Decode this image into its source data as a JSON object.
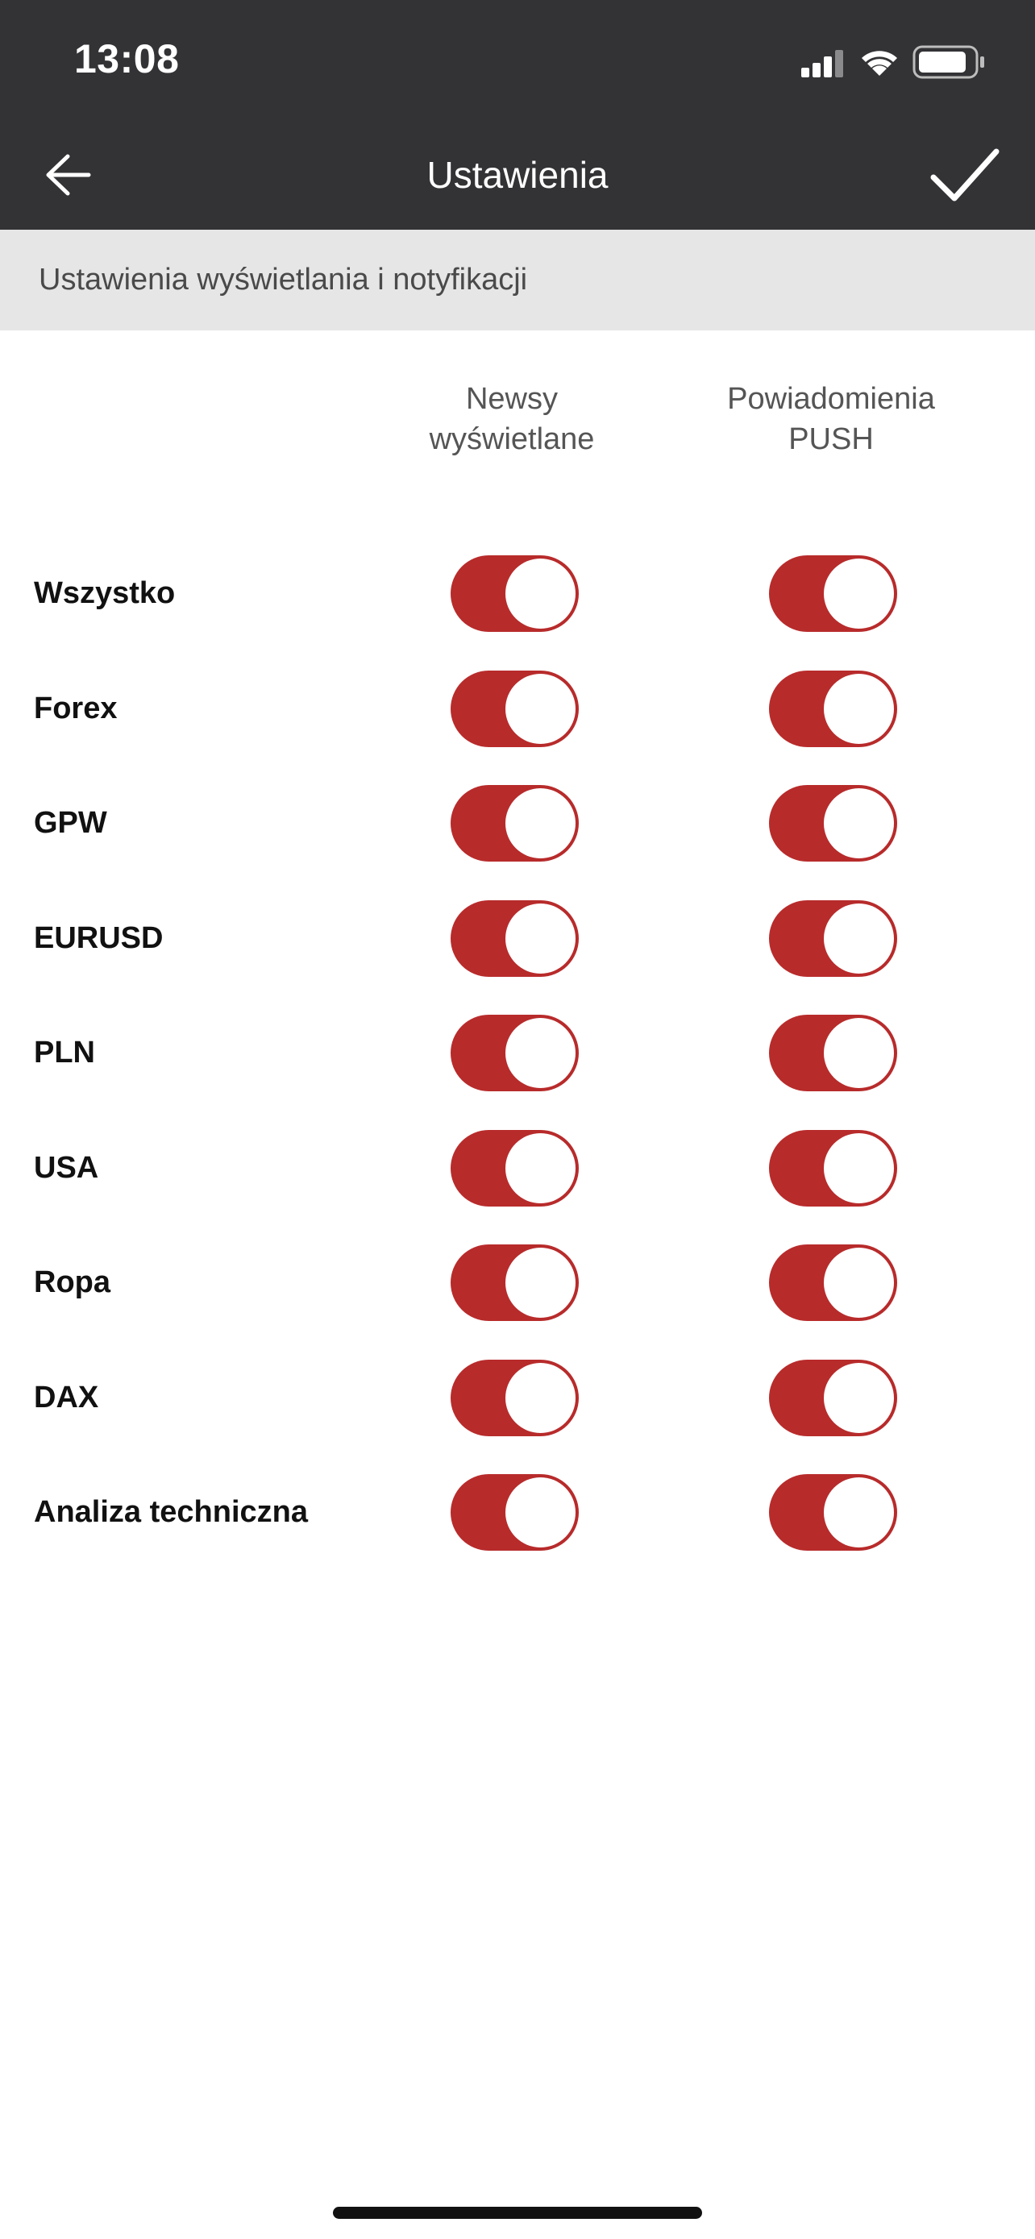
{
  "status_bar": {
    "time": "13:08",
    "icons": [
      "signal-icon",
      "wifi-icon",
      "battery-icon"
    ]
  },
  "header": {
    "title": "Ustawienia",
    "back_icon": "arrow-left-icon",
    "confirm_icon": "checkmark-icon"
  },
  "section": {
    "title": "Ustawienia wyświetlania i notyfikacji"
  },
  "columns": [
    {
      "line1": "Newsy",
      "line2": "wyświetlane"
    },
    {
      "line1": "Powiadomienia",
      "line2": "PUSH"
    }
  ],
  "rows": [
    {
      "label": "Wszystko",
      "news": true,
      "push": true
    },
    {
      "label": "Forex",
      "news": true,
      "push": true
    },
    {
      "label": "GPW",
      "news": true,
      "push": true
    },
    {
      "label": "EURUSD",
      "news": true,
      "push": true
    },
    {
      "label": "PLN",
      "news": true,
      "push": true
    },
    {
      "label": "USA",
      "news": true,
      "push": true
    },
    {
      "label": "Ropa",
      "news": true,
      "push": true
    },
    {
      "label": "DAX",
      "news": true,
      "push": true
    },
    {
      "label": "Analiza techniczna",
      "news": true,
      "push": true
    }
  ],
  "colors": {
    "bar_background": "#333336",
    "toggle_on": "#b82b2b",
    "section_background": "#e6e6e6"
  }
}
